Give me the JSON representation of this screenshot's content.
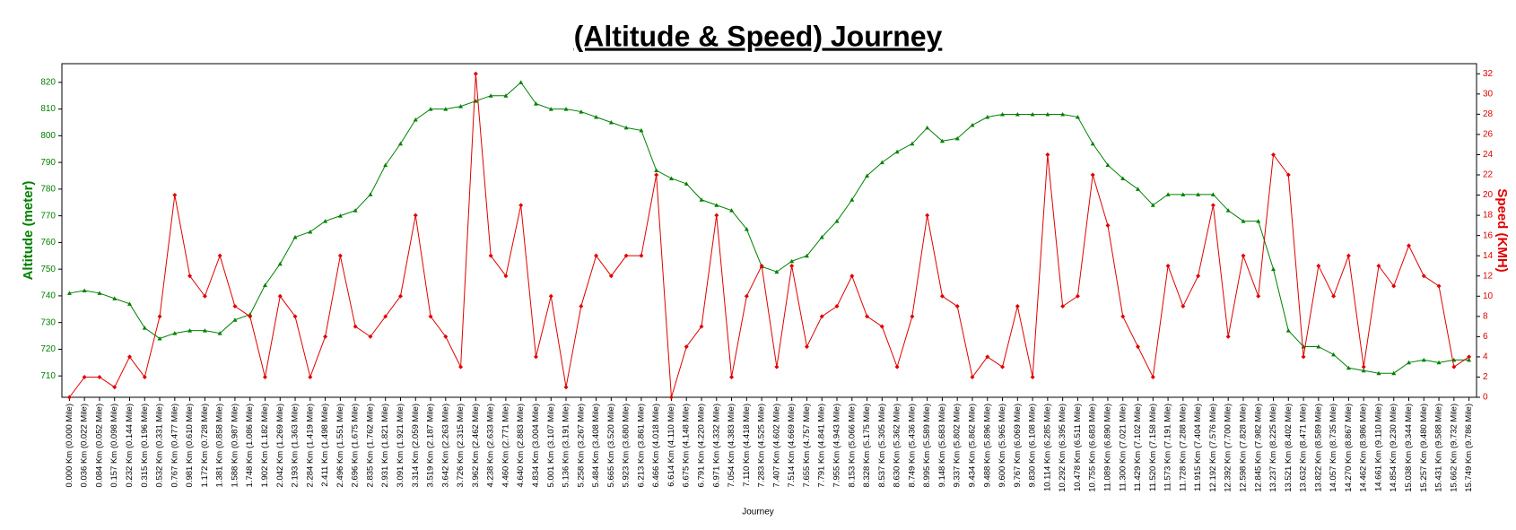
{
  "chart_data": {
    "type": "line",
    "title": "(Altitude & Speed) Journey",
    "x_label": "Journey",
    "y_label": "Altitude (meter)",
    "y2_label": "Speed (KMH)",
    "categories": [
      "0.000 Km (0.000 Mile)",
      "0.036 Km (0.022 Mile)",
      "0.084 Km (0.052 Mile)",
      "0.157 Km (0.098 Mile)",
      "0.232 Km (0.144 Mile)",
      "0.315 Km (0.196 Mile)",
      "0.532 Km (0.331 Mile)",
      "0.767 Km (0.477 Mile)",
      "0.981 Km (0.610 Mile)",
      "1.172 Km (0.728 Mile)",
      "1.381 Km (0.858 Mile)",
      "1.588 Km (0.987 Mile)",
      "1.748 Km (1.086 Mile)",
      "1.902 Km (1.182 Mile)",
      "2.042 Km (1.269 Mile)",
      "2.193 Km (1.363 Mile)",
      "2.284 Km (1.419 Mile)",
      "2.411 Km (1.498 Mile)",
      "2.496 Km (1.551 Mile)",
      "2.696 Km (1.675 Mile)",
      "2.835 Km (1.762 Mile)",
      "2.931 Km (1.821 Mile)",
      "3.091 Km (1.921 Mile)",
      "3.314 Km (2.059 Mile)",
      "3.519 Km (2.187 Mile)",
      "3.642 Km (2.263 Mile)",
      "3.726 Km (2.315 Mile)",
      "3.962 Km (2.462 Mile)",
      "4.238 Km (2.633 Mile)",
      "4.460 Km (2.771 Mile)",
      "4.640 Km (2.883 Mile)",
      "4.834 Km (3.004 Mile)",
      "5.001 Km (3.107 Mile)",
      "5.136 Km (3.191 Mile)",
      "5.258 Km (3.267 Mile)",
      "5.484 Km (3.408 Mile)",
      "5.665 Km (3.520 Mile)",
      "5.923 Km (3.680 Mile)",
      "6.213 Km (3.861 Mile)",
      "6.466 Km (4.018 Mile)",
      "6.614 Km (4.110 Mile)",
      "6.675 Km (4.148 Mile)",
      "6.791 Km (4.220 Mile)",
      "6.971 Km (4.332 Mile)",
      "7.054 Km (4.383 Mile)",
      "7.110 Km (4.418 Mile)",
      "7.283 Km (4.525 Mile)",
      "7.407 Km (4.602 Mile)",
      "7.514 Km (4.669 Mile)",
      "7.655 Km (4.757 Mile)",
      "7.791 Km (4.841 Mile)",
      "7.955 Km (4.943 Mile)",
      "8.153 Km (5.066 Mile)",
      "8.328 Km (5.175 Mile)",
      "8.537 Km (5.305 Mile)",
      "8.630 Km (5.362 Mile)",
      "8.749 Km (5.436 Mile)",
      "8.995 Km (5.589 Mile)",
      "9.148 Km (5.683 Mile)",
      "9.337 Km (5.802 Mile)",
      "9.434 Km (5.862 Mile)",
      "9.488 Km (5.896 Mile)",
      "9.600 Km (5.965 Mile)",
      "9.767 Km (6.069 Mile)",
      "9.830 Km (6.108 Mile)",
      "10.114 Km (6.285 Mile)",
      "10.292 Km (6.395 Mile)",
      "10.478 Km (6.511 Mile)",
      "10.755 Km (6.683 Mile)",
      "11.089 Km (6.890 Mile)",
      "11.300 Km (7.021 Mile)",
      "11.429 Km (7.102 Mile)",
      "11.520 Km (7.158 Mile)",
      "11.573 Km (7.191 Mile)",
      "11.728 Km (7.288 Mile)",
      "11.915 Km (7.404 Mile)",
      "12.192 Km (7.576 Mile)",
      "12.392 Km (7.700 Mile)",
      "12.598 Km (7.828 Mile)",
      "12.845 Km (7.982 Mile)",
      "13.237 Km (8.225 Mile)",
      "13.521 Km (8.402 Mile)",
      "13.632 Km (8.471 Mile)",
      "13.822 Km (8.589 Mile)",
      "14.057 Km (8.735 Mile)",
      "14.270 Km (8.867 Mile)",
      "14.462 Km (8.986 Mile)",
      "14.661 Km (9.110 Mile)",
      "14.854 Km (9.230 Mile)",
      "15.038 Km (9.344 Mile)",
      "15.257 Km (9.480 Mile)",
      "15.431 Km (9.588 Mile)",
      "15.662 Km (9.732 Mile)",
      "15.749 Km (9.786 Mile)"
    ],
    "series": [
      {
        "color": "#008000",
        "axis": "y",
        "marker": "triangle",
        "values": [
          741,
          742,
          741,
          739,
          737,
          728,
          724,
          726,
          727,
          727,
          726,
          731,
          733,
          744,
          752,
          762,
          764,
          768,
          770,
          772,
          778,
          789,
          797,
          806,
          810,
          810,
          811,
          813,
          815,
          815,
          820,
          812,
          810,
          810,
          809,
          807,
          805,
          803,
          802,
          787,
          784,
          782,
          776,
          774,
          772,
          765,
          751,
          749,
          753,
          755,
          762,
          768,
          776,
          785,
          790,
          794,
          797,
          803,
          798,
          799,
          804,
          807,
          808,
          808,
          808,
          808,
          808,
          807,
          797,
          789,
          784,
          780,
          774,
          778,
          778,
          778,
          778,
          772,
          768,
          768,
          750,
          727,
          721,
          721,
          718,
          713,
          712,
          711,
          711,
          715,
          716,
          715,
          716,
          716
        ]
      },
      {
        "color": "#e00000",
        "axis": "y2",
        "marker": "diamond",
        "values": [
          0,
          2,
          2,
          1,
          4,
          2,
          8,
          20,
          12,
          10,
          14,
          9,
          8,
          2,
          10,
          8,
          2,
          6,
          14,
          7,
          6,
          8,
          10,
          18,
          8,
          6,
          3,
          32,
          14,
          12,
          19,
          4,
          10,
          1,
          9,
          14,
          12,
          14,
          14,
          22,
          0,
          5,
          7,
          18,
          2,
          10,
          13,
          3,
          13,
          5,
          8,
          9,
          12,
          8,
          7,
          3,
          8,
          18,
          10,
          9,
          2,
          4,
          3,
          9,
          2,
          24,
          9,
          10,
          22,
          17,
          8,
          5,
          2,
          13,
          9,
          12,
          19,
          6,
          14,
          10,
          24,
          22,
          4,
          13,
          10,
          14,
          3,
          13,
          11,
          15,
          12,
          11,
          3,
          4
        ]
      }
    ],
    "ylim": [
      702,
      827
    ],
    "yticks": [
      710,
      720,
      730,
      740,
      750,
      760,
      770,
      780,
      790,
      800,
      810,
      820
    ],
    "y2lim": [
      0,
      33
    ],
    "y2ticks": [
      0,
      2,
      4,
      6,
      8,
      10,
      12,
      14,
      16,
      18,
      20,
      22,
      24,
      26,
      28,
      30,
      32
    ]
  }
}
